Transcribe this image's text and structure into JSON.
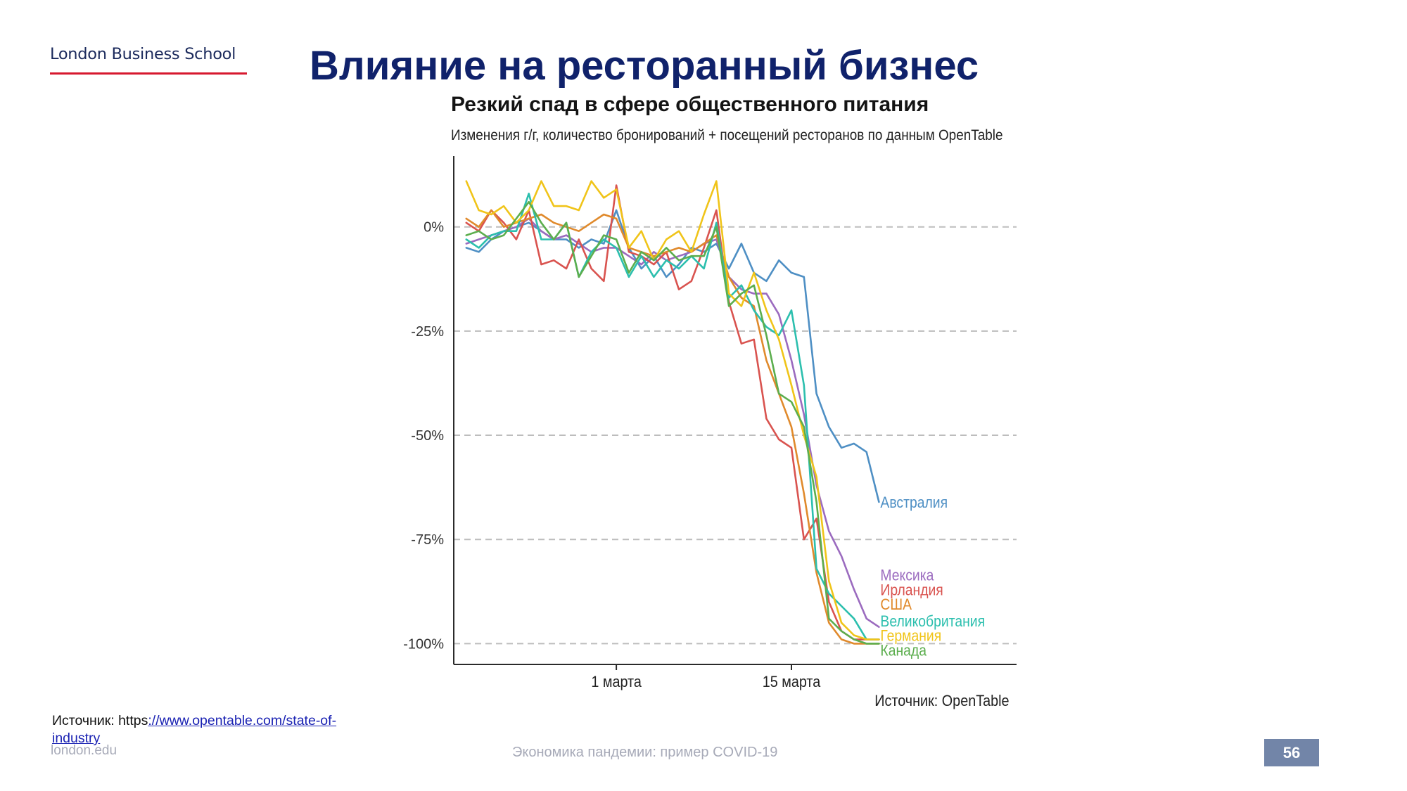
{
  "header": {
    "logo_text": "London Business School",
    "slide_title": "Влияние на ресторанный бизнес"
  },
  "chart_data": {
    "type": "line",
    "title": "Резкий спад в сфере общественного питания",
    "subtitle": "Изменения г/г, количество бронирований + посещений ресторанов по данным OpenTable",
    "source": "Источник: OpenTable",
    "xlabel": "",
    "ylabel": "",
    "x_ticks": [
      {
        "date": "2020-03-01",
        "label": "1 марта"
      },
      {
        "date": "2020-03-15",
        "label": "15 марта"
      }
    ],
    "xlim": [
      "2020-02-17",
      "2020-04-02"
    ],
    "x": [
      "2020-02-18",
      "2020-02-19",
      "2020-02-20",
      "2020-02-21",
      "2020-02-22",
      "2020-02-23",
      "2020-02-24",
      "2020-02-25",
      "2020-02-26",
      "2020-02-27",
      "2020-02-28",
      "2020-02-29",
      "2020-03-01",
      "2020-03-02",
      "2020-03-03",
      "2020-03-04",
      "2020-03-05",
      "2020-03-06",
      "2020-03-07",
      "2020-03-08",
      "2020-03-09",
      "2020-03-10",
      "2020-03-11",
      "2020-03-12",
      "2020-03-13",
      "2020-03-14",
      "2020-03-15",
      "2020-03-16",
      "2020-03-17",
      "2020-03-18",
      "2020-03-19",
      "2020-03-20",
      "2020-03-21",
      "2020-03-22"
    ],
    "y_ticks": [
      0,
      -25,
      -50,
      -75,
      -100
    ],
    "y_tick_labels": [
      "0%",
      "-25%",
      "-50%",
      "-75%",
      "-100%"
    ],
    "ylim": [
      -105,
      17
    ],
    "grid": "horizontal dashed",
    "legend": "direct labels at right end of lines",
    "series": [
      {
        "name": "Австралия",
        "color": "#4e8fc4",
        "values": [
          -5,
          -6,
          -3,
          -1,
          0,
          1,
          -1,
          -3,
          -3,
          -5,
          -3,
          -4,
          4,
          -5,
          -10,
          -7,
          -12,
          -9,
          -5,
          -6,
          -4,
          -10,
          -4,
          -11,
          -13,
          -8,
          -11,
          -12,
          -40,
          -48,
          -53,
          -52,
          -54,
          -66
        ]
      },
      {
        "name": "Мексика",
        "color": "#9b6bbf",
        "values": [
          -4,
          -3,
          -2,
          -1,
          0,
          2,
          -1,
          -3,
          -2,
          -4,
          -6,
          -5,
          -5,
          -7,
          -9,
          -6,
          -8,
          -7,
          -6,
          -4,
          -3,
          -12,
          -15,
          -16,
          -16,
          -21,
          -32,
          -45,
          -62,
          -73,
          -79,
          -87,
          -94,
          -96
        ]
      },
      {
        "name": "Ирландия",
        "color": "#d9534f",
        "values": [
          1,
          -1,
          4,
          1,
          -3,
          4,
          -9,
          -8,
          -10,
          -3,
          -10,
          -13,
          10,
          -6,
          -7,
          -9,
          -6,
          -15,
          -13,
          -5,
          4,
          -18,
          -28,
          -27,
          -46,
          -51,
          -53,
          -75,
          -70,
          -90,
          -97,
          -99,
          -99,
          -99
        ]
      },
      {
        "name": "США",
        "color": "#e08a2c",
        "values": [
          2,
          0,
          4,
          0,
          1,
          2,
          3,
          1,
          0,
          -1,
          1,
          3,
          2,
          -5,
          -6,
          -7,
          -6,
          -5,
          -6,
          -4,
          -2,
          -12,
          -17,
          -19,
          -32,
          -40,
          -48,
          -64,
          -83,
          -95,
          -99,
          -100,
          -100,
          -100
        ]
      },
      {
        "name": "Великобритания",
        "color": "#2cbfae",
        "values": [
          -3,
          -5,
          -2,
          -1,
          -1,
          8,
          -3,
          -3,
          1,
          -12,
          -6,
          -3,
          -5,
          -12,
          -7,
          -12,
          -8,
          -10,
          -7,
          -10,
          1,
          -17,
          -14,
          -20,
          -24,
          -26,
          -20,
          -38,
          -82,
          -88,
          -91,
          -94,
          -99,
          -99
        ]
      },
      {
        "name": "Германия",
        "color": "#f0c419",
        "values": [
          11,
          4,
          3,
          5,
          1,
          4,
          11,
          5,
          5,
          4,
          11,
          7,
          9,
          -5,
          -1,
          -8,
          -3,
          -1,
          -6,
          3,
          11,
          -16,
          -19,
          -11,
          -20,
          -27,
          -38,
          -50,
          -60,
          -85,
          -95,
          -98,
          -99,
          -99
        ]
      },
      {
        "name": "Канада",
        "color": "#5cae4e",
        "values": [
          -2,
          -1,
          -3,
          -2,
          2,
          6,
          1,
          -3,
          1,
          -12,
          -7,
          -2,
          -3,
          -11,
          -6,
          -8,
          -5,
          -8,
          -7,
          -7,
          0,
          -19,
          -16,
          -14,
          -26,
          -40,
          -42,
          -48,
          -66,
          -94,
          -97,
          -99,
          -100,
          -100
        ]
      }
    ]
  },
  "footer": {
    "source_prefix": "Источник: https",
    "source_link": "://www.opentable.com/state-of-industry",
    "domain": "london.edu",
    "center_text": "Экономика пандемии: пример COVID-19",
    "page_number": "56"
  }
}
